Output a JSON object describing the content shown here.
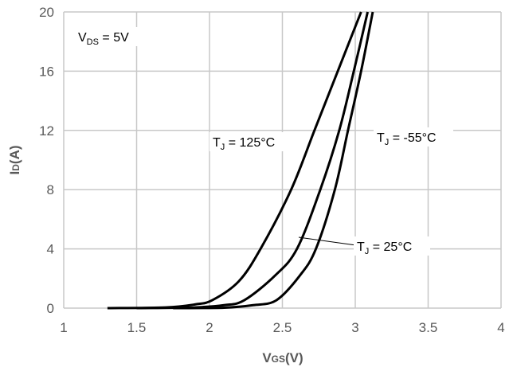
{
  "chart_data": {
    "type": "line",
    "xlabel": {
      "main": "V",
      "sub": "GS",
      "unit": "(V)"
    },
    "ylabel": {
      "main": "I",
      "sub": "D",
      "unit": "(A)"
    },
    "xlim": [
      1,
      4
    ],
    "ylim": [
      0,
      20
    ],
    "xticks": [
      "1",
      "1.5",
      "2",
      "2.5",
      "3",
      "3.5",
      "4"
    ],
    "yticks": [
      "0",
      "4",
      "8",
      "12",
      "16",
      "20"
    ],
    "grid": true,
    "condition": {
      "main": "V",
      "sub": "DS",
      "rest": " = 5V"
    },
    "series": [
      {
        "name": {
          "main": "T",
          "sub": "J",
          "rest": " = 125°C"
        },
        "x": [
          1.3,
          1.7,
          1.9,
          2.02,
          2.2,
          2.35,
          2.56,
          2.72,
          2.88,
          3.04
        ],
        "y": [
          0,
          0.05,
          0.25,
          0.54,
          1.8,
          4,
          8,
          12,
          16,
          20
        ]
      },
      {
        "name": {
          "main": "T",
          "sub": "J",
          "rest": " = 25°C"
        },
        "x": [
          1.5,
          1.9,
          2.1,
          2.24,
          2.45,
          2.6,
          2.76,
          2.89,
          2.99,
          3.085
        ],
        "y": [
          0,
          0.05,
          0.2,
          0.54,
          2.2,
          4,
          8,
          12,
          16,
          20
        ]
      },
      {
        "name": {
          "main": "T",
          "sub": "J",
          "rest": " = -55°C"
        },
        "x": [
          1.75,
          2.1,
          2.3,
          2.46,
          2.62,
          2.73,
          2.86,
          2.95,
          3.04,
          3.12
        ],
        "y": [
          0,
          0.03,
          0.2,
          0.54,
          2.2,
          4,
          8,
          12,
          16,
          20
        ]
      }
    ],
    "colors": {
      "grid": "#c8c8c8",
      "curve": "#000000",
      "text": "#595959"
    }
  }
}
